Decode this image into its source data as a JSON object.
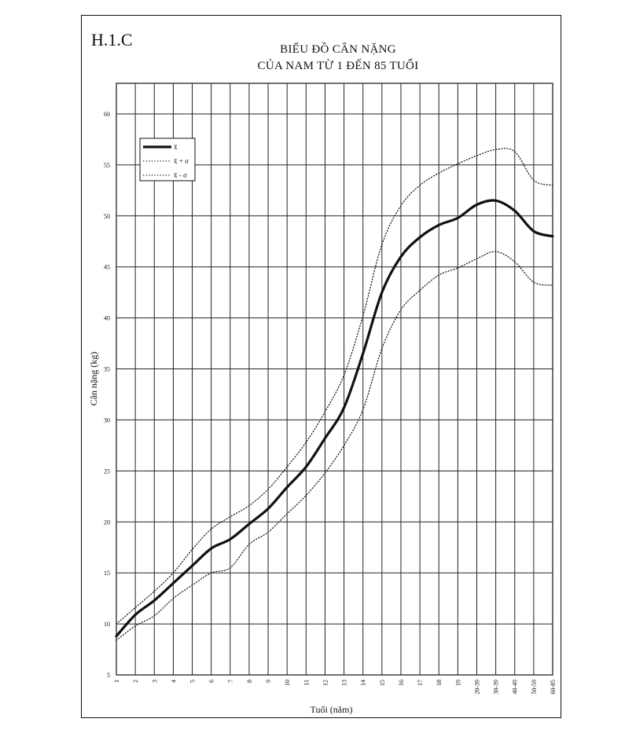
{
  "figure_label": "H.1.C",
  "chart_data": {
    "type": "line",
    "title": "BIỂU ĐỒ CÂN NẶNG",
    "subtitle": "CỦA NAM TỪ 1 ĐẾN 85 TUỔI",
    "xlabel": "Tuổi (năm)",
    "ylabel": "Cân nặng (kg)",
    "ylim": [
      5,
      63
    ],
    "yticks": [
      5,
      10,
      15,
      20,
      25,
      30,
      35,
      40,
      45,
      50,
      55,
      60
    ],
    "grid": true,
    "legend_position": "top-left",
    "categories": [
      "1",
      "2",
      "3",
      "4",
      "5",
      "6",
      "7",
      "8",
      "9",
      "10",
      "11",
      "12",
      "13",
      "14",
      "15",
      "16",
      "17",
      "18",
      "19",
      "20-39",
      "30-39",
      "40-49",
      "50-59",
      "60-85"
    ],
    "series": [
      {
        "name": "x̄",
        "style": "solid-thick",
        "values": [
          8.8,
          10.9,
          12.3,
          14.0,
          15.7,
          17.4,
          18.3,
          19.8,
          21.3,
          23.4,
          25.4,
          28.2,
          31.2,
          36.5,
          42.5,
          46.0,
          47.9,
          49.1,
          49.8,
          51.1,
          51.5,
          50.5,
          48.5,
          48.0
        ]
      },
      {
        "name": "x̄ + σ",
        "style": "dotted",
        "values": [
          10.0,
          11.6,
          13.2,
          15.0,
          17.3,
          19.3,
          20.5,
          21.6,
          23.2,
          25.4,
          27.8,
          30.8,
          34.4,
          40.2,
          47.2,
          51.0,
          53.0,
          54.2,
          55.1,
          55.9,
          56.5,
          56.3,
          53.5,
          53.0
        ]
      },
      {
        "name": "x̄ - σ",
        "style": "dotted",
        "values": [
          8.4,
          9.8,
          10.8,
          12.5,
          13.8,
          15.0,
          15.5,
          17.8,
          19.0,
          20.8,
          22.6,
          24.8,
          27.5,
          31.0,
          37.0,
          40.8,
          42.7,
          44.2,
          44.9,
          45.8,
          46.5,
          45.5,
          43.5,
          43.2
        ]
      }
    ]
  }
}
